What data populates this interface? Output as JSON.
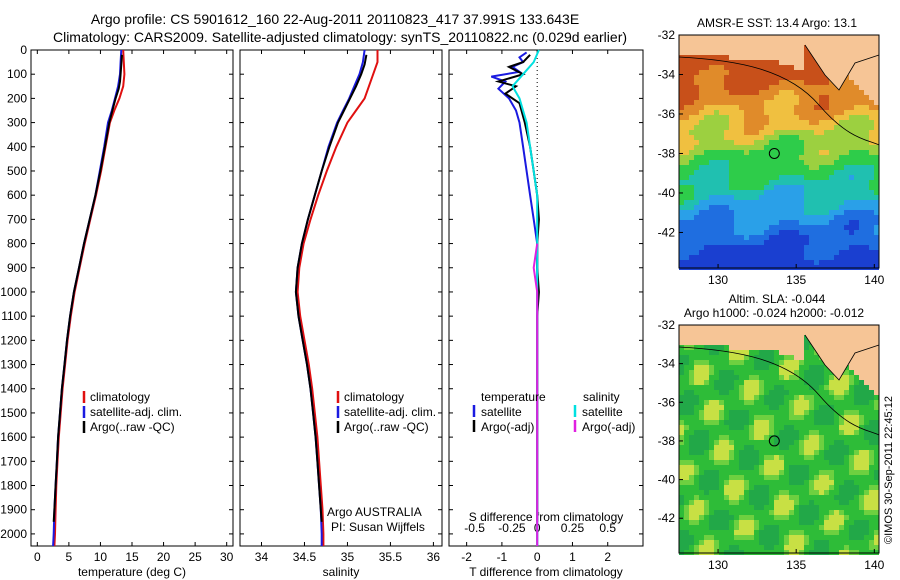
{
  "header": {
    "line1": "Argo profile: CS 5901612_160 22-Aug-2011 20110823_417 37.991S 133.643E",
    "line2": "Climatology: CARS2009. Satellite-adjusted climatology: synTS_20110822.nc (0.029d earlier)"
  },
  "side_text": "©IMOS 30-Sep-2011 22:45:12",
  "colors": {
    "red": "#e01010",
    "blue": "#1a1ae0",
    "black": "#000000",
    "cyan": "#00e0e0",
    "magenta": "#e020e0",
    "land": "#f6c596",
    "coast": "#000000"
  },
  "chart_data": [
    {
      "id": "temperature",
      "type": "line",
      "xlabel": "temperature (deg C)",
      "ylabel": "",
      "xlim": [
        -1,
        31
      ],
      "ylim": [
        2050,
        0
      ],
      "xticks": [
        0,
        5,
        10,
        15,
        20,
        25,
        30
      ],
      "yticks": [
        0,
        100,
        200,
        300,
        400,
        500,
        600,
        700,
        800,
        900,
        1000,
        1100,
        1200,
        1300,
        1400,
        1500,
        1600,
        1700,
        1800,
        1900,
        2000
      ],
      "legend": [
        "climatology",
        "satellite-adj. clim.",
        "Argo(..raw -QC)"
      ],
      "series": [
        {
          "name": "climatology",
          "color": "red",
          "points": [
            [
              13.6,
              0
            ],
            [
              13.7,
              50
            ],
            [
              13.8,
              100
            ],
            [
              13.6,
              150
            ],
            [
              13.0,
              200
            ],
            [
              12.2,
              250
            ],
            [
              11.5,
              300
            ],
            [
              10.8,
              400
            ],
            [
              10.1,
              500
            ],
            [
              9.3,
              600
            ],
            [
              8.4,
              700
            ],
            [
              7.5,
              800
            ],
            [
              6.7,
              900
            ],
            [
              5.9,
              1000
            ],
            [
              5.3,
              1100
            ],
            [
              4.8,
              1200
            ],
            [
              4.4,
              1300
            ],
            [
              4.0,
              1400
            ],
            [
              3.7,
              1500
            ],
            [
              3.4,
              1600
            ],
            [
              3.2,
              1700
            ],
            [
              3.0,
              1800
            ],
            [
              2.9,
              1900
            ],
            [
              2.8,
              2000
            ],
            [
              2.7,
              2050
            ]
          ]
        },
        {
          "name": "satellite-adj. clim.",
          "color": "blue",
          "points": [
            [
              13.3,
              0
            ],
            [
              13.2,
              50
            ],
            [
              13.1,
              100
            ],
            [
              12.8,
              150
            ],
            [
              12.3,
              200
            ],
            [
              11.8,
              250
            ],
            [
              11.2,
              300
            ],
            [
              10.6,
              400
            ],
            [
              9.9,
              500
            ],
            [
              9.2,
              600
            ],
            [
              8.3,
              700
            ],
            [
              7.4,
              800
            ],
            [
              6.6,
              900
            ],
            [
              5.8,
              1000
            ],
            [
              5.2,
              1100
            ],
            [
              4.7,
              1200
            ],
            [
              4.3,
              1300
            ],
            [
              3.9,
              1400
            ],
            [
              3.6,
              1500
            ],
            [
              3.3,
              1600
            ],
            [
              3.1,
              1700
            ],
            [
              2.9,
              1800
            ],
            [
              2.7,
              1900
            ],
            [
              2.6,
              2000
            ],
            [
              2.5,
              2050
            ]
          ]
        },
        {
          "name": "Argo(..raw -QC)",
          "color": "black",
          "points": [
            [
              13.4,
              20
            ],
            [
              13.3,
              60
            ],
            [
              13.2,
              100
            ],
            [
              13.1,
              130
            ],
            [
              12.9,
              160
            ],
            [
              12.4,
              200
            ],
            [
              11.9,
              250
            ],
            [
              11.4,
              300
            ],
            [
              10.7,
              400
            ],
            [
              10.0,
              500
            ],
            [
              9.2,
              600
            ],
            [
              8.3,
              700
            ],
            [
              7.4,
              800
            ],
            [
              6.6,
              900
            ],
            [
              5.8,
              1000
            ],
            [
              5.2,
              1100
            ],
            [
              4.7,
              1200
            ],
            [
              4.3,
              1300
            ],
            [
              3.9,
              1400
            ],
            [
              3.6,
              1500
            ],
            [
              3.3,
              1600
            ],
            [
              3.1,
              1700
            ],
            [
              2.9,
              1800
            ],
            [
              2.7,
              1900
            ],
            [
              2.6,
              1950
            ]
          ]
        }
      ]
    },
    {
      "id": "salinity",
      "type": "line",
      "xlabel": "salinity",
      "ylabel": "",
      "xlim": [
        33.75,
        36.1
      ],
      "ylim": [
        2050,
        0
      ],
      "xticks": [
        34,
        34.5,
        35,
        35.5,
        36
      ],
      "legend": [
        "climatology",
        "satellite-adj. clim.",
        "Argo(..raw -QC)"
      ],
      "annotation": [
        "Argo AUSTRALIA",
        "PI: Susan Wijffels"
      ],
      "series": [
        {
          "name": "climatology",
          "color": "red",
          "points": [
            [
              35.35,
              0
            ],
            [
              35.35,
              50
            ],
            [
              35.3,
              100
            ],
            [
              35.25,
              150
            ],
            [
              35.2,
              200
            ],
            [
              35.1,
              250
            ],
            [
              35.0,
              300
            ],
            [
              34.87,
              400
            ],
            [
              34.76,
              500
            ],
            [
              34.66,
              600
            ],
            [
              34.57,
              700
            ],
            [
              34.49,
              800
            ],
            [
              34.44,
              900
            ],
            [
              34.42,
              1000
            ],
            [
              34.45,
              1100
            ],
            [
              34.5,
              1200
            ],
            [
              34.55,
              1300
            ],
            [
              34.59,
              1400
            ],
            [
              34.62,
              1500
            ],
            [
              34.65,
              1600
            ],
            [
              34.67,
              1700
            ],
            [
              34.69,
              1800
            ],
            [
              34.71,
              1900
            ],
            [
              34.72,
              2000
            ],
            [
              34.72,
              2050
            ]
          ]
        },
        {
          "name": "satellite-adj. clim.",
          "color": "blue",
          "points": [
            [
              35.2,
              0
            ],
            [
              35.18,
              50
            ],
            [
              35.14,
              100
            ],
            [
              35.08,
              150
            ],
            [
              35.02,
              200
            ],
            [
              34.95,
              250
            ],
            [
              34.88,
              300
            ],
            [
              34.78,
              400
            ],
            [
              34.7,
              500
            ],
            [
              34.62,
              600
            ],
            [
              34.54,
              700
            ],
            [
              34.47,
              800
            ],
            [
              34.42,
              900
            ],
            [
              34.4,
              1000
            ],
            [
              34.43,
              1100
            ],
            [
              34.48,
              1200
            ],
            [
              34.53,
              1300
            ],
            [
              34.57,
              1400
            ],
            [
              34.6,
              1500
            ],
            [
              34.63,
              1600
            ],
            [
              34.65,
              1700
            ],
            [
              34.67,
              1800
            ],
            [
              34.69,
              1900
            ],
            [
              34.7,
              2000
            ],
            [
              34.7,
              2050
            ]
          ]
        },
        {
          "name": "Argo(..raw -QC)",
          "color": "black",
          "points": [
            [
              35.22,
              20
            ],
            [
              35.2,
              60
            ],
            [
              35.16,
              100
            ],
            [
              35.1,
              150
            ],
            [
              35.03,
              200
            ],
            [
              34.96,
              250
            ],
            [
              34.89,
              300
            ],
            [
              34.79,
              400
            ],
            [
              34.7,
              500
            ],
            [
              34.62,
              600
            ],
            [
              34.54,
              700
            ],
            [
              34.47,
              800
            ],
            [
              34.42,
              900
            ],
            [
              34.4,
              1000
            ],
            [
              34.43,
              1100
            ],
            [
              34.48,
              1200
            ],
            [
              34.53,
              1300
            ],
            [
              34.57,
              1400
            ],
            [
              34.6,
              1500
            ],
            [
              34.63,
              1600
            ],
            [
              34.65,
              1700
            ],
            [
              34.67,
              1800
            ],
            [
              34.69,
              1900
            ],
            [
              34.7,
              1950
            ]
          ]
        }
      ]
    },
    {
      "id": "difference",
      "type": "line",
      "xlabel": "T difference from climatology",
      "xlabel_top": "S difference from climatology",
      "xlim": [
        -2.5,
        3
      ],
      "ylim": [
        2050,
        0
      ],
      "xticks": [
        -2,
        -1,
        0,
        1,
        2
      ],
      "sticks": [
        "-0.5",
        "-0.25",
        "0",
        "0.25",
        "0.5"
      ],
      "legend_left": {
        "title": "temperature",
        "items": [
          "satellite",
          "Argo(-adj)"
        ]
      },
      "legend_right": {
        "title": "salinity",
        "items": [
          "satellite",
          "Argo(-adj)"
        ]
      },
      "series": [
        {
          "name": "temperature satellite",
          "color": "blue",
          "points": [
            [
              -0.3,
              10
            ],
            [
              -0.5,
              30
            ],
            [
              -0.4,
              50
            ],
            [
              -0.7,
              70
            ],
            [
              -0.5,
              90
            ],
            [
              -1.3,
              110
            ],
            [
              -0.9,
              130
            ],
            [
              -1.1,
              160
            ],
            [
              -0.8,
              200
            ],
            [
              -0.6,
              250
            ],
            [
              -0.5,
              300
            ],
            [
              -0.4,
              400
            ],
            [
              -0.3,
              500
            ],
            [
              -0.2,
              600
            ],
            [
              -0.1,
              700
            ],
            [
              0,
              800
            ],
            [
              0,
              2050
            ]
          ]
        },
        {
          "name": "temperature Argo(-adj)",
          "color": "black",
          "points": [
            [
              -0.2,
              20
            ],
            [
              -0.4,
              50
            ],
            [
              -0.8,
              70
            ],
            [
              -0.4,
              100
            ],
            [
              -1.1,
              130
            ],
            [
              -0.6,
              150
            ],
            [
              -0.9,
              180
            ],
            [
              -0.5,
              220
            ],
            [
              -0.35,
              300
            ],
            [
              -0.2,
              400
            ],
            [
              -0.1,
              500
            ],
            [
              0,
              600
            ],
            [
              0.05,
              700
            ],
            [
              0,
              800
            ],
            [
              0,
              900
            ],
            [
              0.05,
              1000
            ],
            [
              0,
              1100
            ],
            [
              0,
              1950
            ]
          ]
        },
        {
          "name": "salinity satellite",
          "color": "cyan",
          "points": [
            [
              0.05,
              0
            ],
            [
              -0.1,
              50
            ],
            [
              -0.4,
              100
            ],
            [
              -0.7,
              150
            ],
            [
              -0.5,
              200
            ],
            [
              -0.3,
              300
            ],
            [
              -0.2,
              400
            ],
            [
              -0.1,
              500
            ],
            [
              0,
              600
            ],
            [
              0,
              2050
            ]
          ]
        },
        {
          "name": "salinity Argo(-adj)",
          "color": "magenta",
          "points": [
            [
              0,
              800
            ],
            [
              -0.1,
              900
            ],
            [
              0,
              1000
            ],
            [
              0,
              2050
            ]
          ]
        }
      ]
    },
    {
      "id": "sst_map",
      "type": "heatmap",
      "title": "AMSR-E SST: 13.4  Argo: 13.1",
      "xticks": [
        130,
        135,
        140
      ],
      "yticks": [
        -32,
        -34,
        -36,
        -38,
        -40,
        -42
      ],
      "xlim": [
        127.5,
        140.3
      ],
      "ylim": [
        -43.8,
        -32
      ],
      "marker": [
        133.6,
        -38.0
      ]
    },
    {
      "id": "sla_map",
      "type": "heatmap",
      "title": "Altim. SLA: -0.044",
      "subtitle": "Argo h1000: -0.024 h2000: -0.012",
      "xticks": [
        130,
        135,
        140
      ],
      "yticks": [
        -32,
        -34,
        -36,
        -38,
        -40,
        -42
      ],
      "xlim": [
        127.5,
        140.3
      ],
      "ylim": [
        -43.8,
        -32
      ],
      "marker": [
        133.6,
        -38.0
      ]
    }
  ]
}
